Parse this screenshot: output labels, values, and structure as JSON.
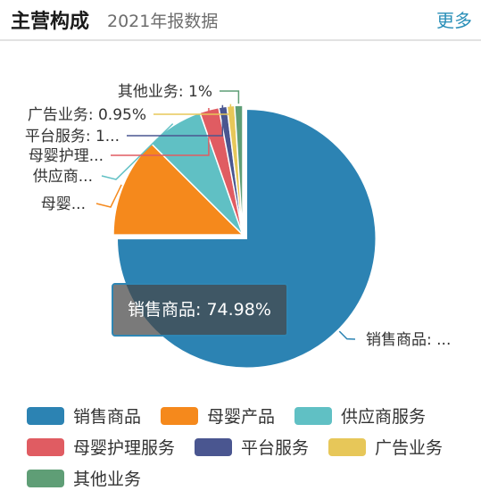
{
  "header": {
    "title": "主营构成",
    "subtitle": "2021年报数据",
    "more_label": "更多"
  },
  "tooltip": {
    "text": "销售商品: 74.98%"
  },
  "chart_data": {
    "type": "pie",
    "unit": "%",
    "slices": [
      {
        "name": "销售商品",
        "value": 74.98,
        "color": "#2c83b3",
        "label": "销售商品: ..."
      },
      {
        "name": "母婴产品",
        "value": 12.5,
        "color": "#f5891c",
        "label": "母婴..."
      },
      {
        "name": "供应商服务",
        "value": 7.15,
        "color": "#60c0c4",
        "label": "供应商..."
      },
      {
        "name": "母婴护理服务",
        "value": 2.4,
        "color": "#e05c62",
        "label": "母婴护理..."
      },
      {
        "name": "平台服务",
        "value": 1.02,
        "color": "#4a5690",
        "label": "平台服务: 1..."
      },
      {
        "name": "广告业务",
        "value": 0.95,
        "color": "#e7c759",
        "label": "广告业务: 0.95%"
      },
      {
        "name": "其他业务",
        "value": 1,
        "color": "#5f9e76",
        "label": "其他业务: 1%"
      }
    ],
    "legend_rows": [
      [
        0,
        1,
        2
      ],
      [
        3,
        4,
        5
      ],
      [
        6
      ]
    ]
  }
}
